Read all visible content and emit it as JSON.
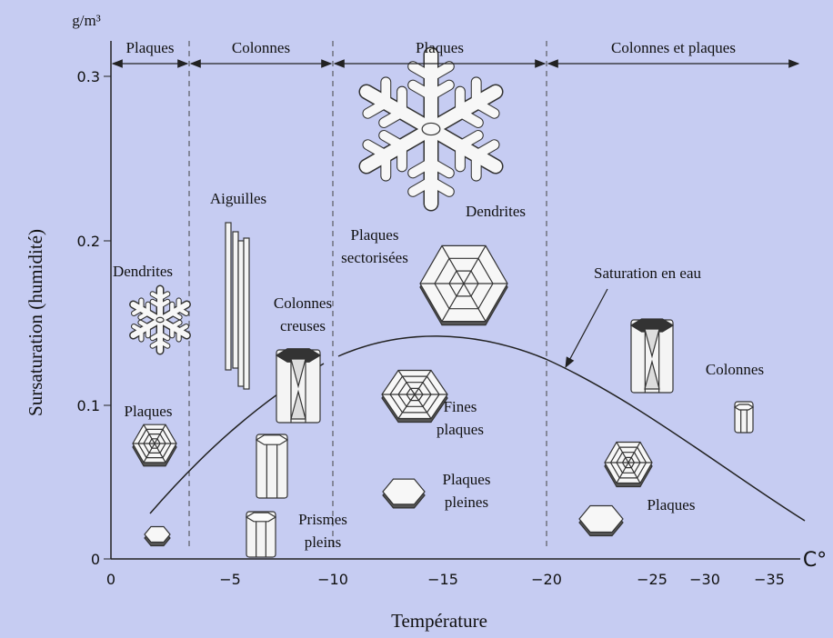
{
  "axes": {
    "y_unit": "g/m³",
    "x_unit": "C°",
    "x_title": "Température",
    "y_title": "Sursaturation (humidité)",
    "x_ticks": [
      "0",
      "−5",
      "−10",
      "−15",
      "−20",
      "−25",
      "−30",
      "−35"
    ],
    "y_ticks": [
      "0",
      "0.1",
      "0.2",
      "0.3"
    ]
  },
  "regions": [
    "Plaques",
    "Colonnes",
    "Plaques",
    "Colonnes et plaques"
  ],
  "labels": [
    [
      "Aiguilles"
    ],
    [
      "Dendrites"
    ],
    [
      "Plaques"
    ],
    [
      "Colonnes",
      "creuses"
    ],
    [
      "Plaques",
      "sectorisées"
    ],
    [
      "Dendrites"
    ],
    [
      "Saturation en eau"
    ],
    [
      "Colonnes"
    ],
    [
      "Fines",
      "plaques"
    ],
    [
      "Plaques",
      "pleines"
    ],
    [
      "Prismes",
      "pleins"
    ],
    [
      "Plaques"
    ]
  ]
}
